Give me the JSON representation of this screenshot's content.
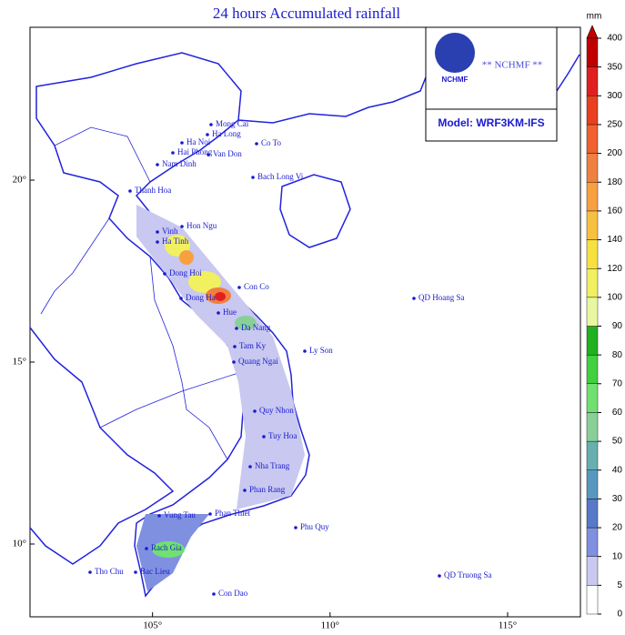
{
  "title": "24 hours Accumulated rainfall",
  "colorbar": {
    "unit": "mm",
    "ticks": [
      0,
      5,
      10,
      20,
      30,
      40,
      50,
      60,
      70,
      80,
      90,
      100,
      120,
      140,
      160,
      180,
      200,
      250,
      300,
      350,
      400
    ],
    "colors": [
      "#ffffff",
      "#c8c8f0",
      "#8090e0",
      "#5878c8",
      "#5898c0",
      "#68b0b0",
      "#88d098",
      "#70e070",
      "#40d040",
      "#20b020",
      "#e8f8a0",
      "#f0f060",
      "#f8e040",
      "#f8c040",
      "#f8a040",
      "#f08040",
      "#f06030",
      "#e84020",
      "#e02020",
      "#c00000"
    ]
  },
  "map": {
    "xlim": [
      101.55,
      117.05
    ],
    "ylim": [
      8.0,
      24.2
    ],
    "xticks": [
      {
        "value": 105,
        "label": "105°"
      },
      {
        "value": 110,
        "label": "110°"
      },
      {
        "value": 115,
        "label": "115°"
      }
    ],
    "yticks": [
      {
        "value": 10,
        "label": "10°"
      },
      {
        "value": 15,
        "label": "15°"
      },
      {
        "value": 20,
        "label": "20°"
      }
    ]
  },
  "places": [
    "Mong Cai",
    "Ha Long",
    "Co To",
    "Ha Noi",
    "Hai Phong",
    "Van Don",
    "Nam Dinh",
    "Bach Long Vi",
    "Thanh Hoa",
    "Hon Ngu",
    "Vinh",
    "Ha Tinh",
    "Dong Hoi",
    "Con Co",
    "Dong Ha",
    "Hue",
    "Da Nang",
    "Tam Ky",
    "Ly Son",
    "Quang Ngai",
    "QD Hoang Sa",
    "Quy Nhon",
    "Tuy Hoa",
    "Nha Trang",
    "Phan Rang",
    "Phan Thiet",
    "Vung Tau",
    "Phu Quy",
    "Rach Gia",
    "Tho Chu",
    "Bac Lieu",
    "Con Dao",
    "QD Truong Sa"
  ],
  "logo": {
    "name": "NCHMF",
    "banner": "** NCHMF **",
    "model": "Model: WRF3KM-IFS"
  }
}
